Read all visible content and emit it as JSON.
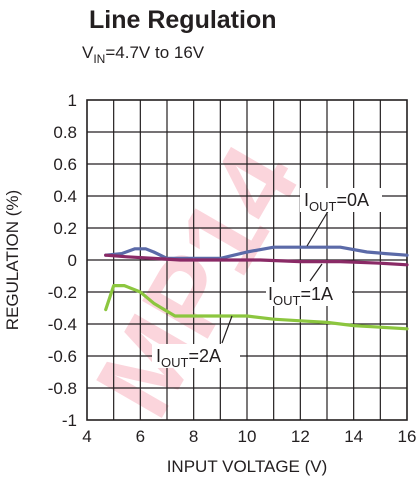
{
  "chart_data": {
    "type": "line",
    "title": "Line Regulation",
    "subtitle_pre": "V",
    "subtitle_sub": "IN",
    "subtitle_post": "=4.7V to 16V",
    "xlabel": "INPUT VOLTAGE (V)",
    "ylabel": "REGULATION (%)",
    "xlim": [
      4,
      16
    ],
    "ylim": [
      -1,
      1
    ],
    "xticks": [
      "4",
      "6",
      "8",
      "10",
      "12",
      "14",
      "16"
    ],
    "yticks": [
      "1",
      "0.8",
      "0.6",
      "0.4",
      "0.2",
      "0",
      "-0.2",
      "-0.4",
      "-0.6",
      "-0.8",
      "-1"
    ],
    "grid": true,
    "series": [
      {
        "name_pre": "I",
        "name_sub": "OUT",
        "name_post": "=0A",
        "color": "#5b6aa8",
        "x": [
          4.7,
          5.3,
          5.8,
          6.2,
          6.5,
          7.0,
          8.0,
          9.0,
          10.0,
          11.0,
          12.0,
          13.5,
          14.5,
          15.2,
          16.0
        ],
        "y": [
          0.03,
          0.04,
          0.07,
          0.07,
          0.05,
          0.01,
          0.01,
          0.01,
          0.05,
          0.08,
          0.08,
          0.08,
          0.05,
          0.04,
          0.03
        ]
      },
      {
        "name_pre": "I",
        "name_sub": "OUT",
        "name_post": "=1A",
        "color": "#8a2a66",
        "x": [
          4.7,
          5.5,
          6.5,
          7.5,
          9.0,
          10.5,
          12.0,
          13.5,
          15.0,
          16.0
        ],
        "y": [
          0.03,
          0.02,
          0.01,
          0.0,
          0.0,
          0.0,
          -0.01,
          -0.01,
          -0.02,
          -0.03
        ]
      },
      {
        "name_pre": "I",
        "name_sub": "OUT",
        "name_post": "=2A",
        "color": "#8cc63f",
        "x": [
          4.7,
          5.0,
          5.4,
          6.0,
          6.5,
          7.0,
          7.3,
          8.0,
          9.0,
          10.0,
          11.0,
          12.0,
          13.0,
          14.0,
          15.0,
          16.0
        ],
        "y": [
          -0.31,
          -0.16,
          -0.16,
          -0.2,
          -0.27,
          -0.32,
          -0.35,
          -0.35,
          -0.35,
          -0.35,
          -0.37,
          -0.38,
          -0.39,
          -0.41,
          -0.42,
          -0.43
        ]
      }
    ]
  },
  "watermark": "MP14"
}
